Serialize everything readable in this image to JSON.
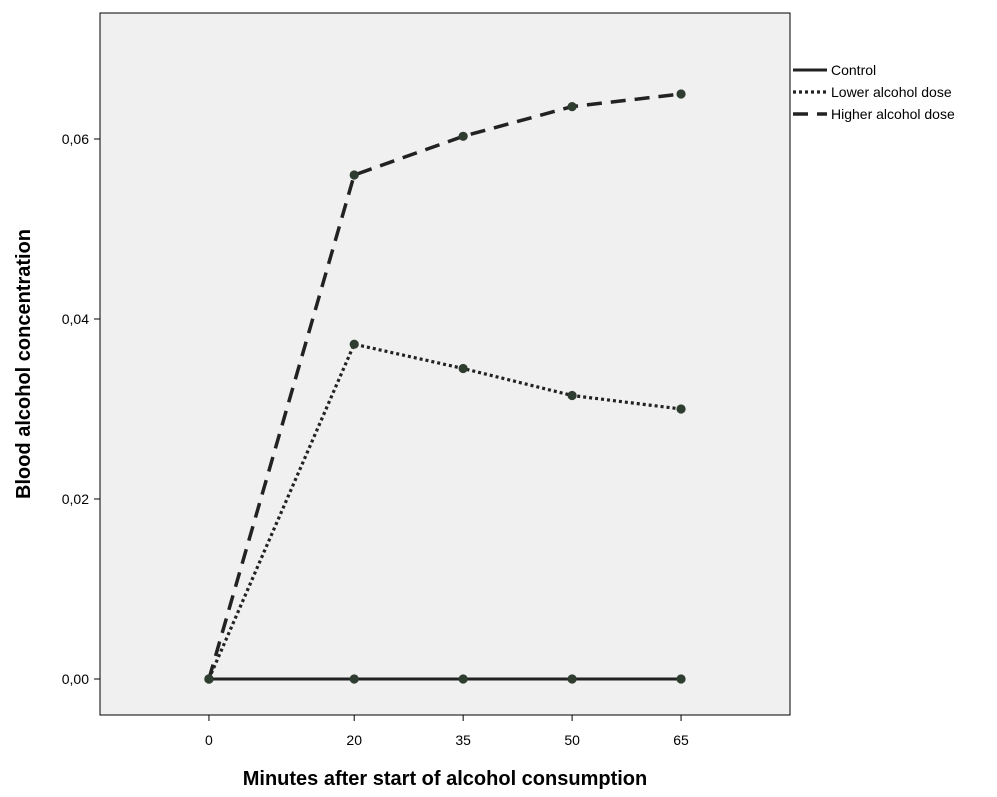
{
  "chart_data": {
    "type": "line",
    "title": "",
    "xlabel": "Minutes after start of alcohol consumption",
    "ylabel": "Blood alcohol concentration",
    "x": [
      0,
      20,
      35,
      50,
      65
    ],
    "x_tick_labels": [
      "0",
      "20",
      "35",
      "50",
      "65"
    ],
    "y_ticks": [
      0.0,
      0.02,
      0.04,
      0.06
    ],
    "y_tick_labels": [
      "0,00",
      "0,02",
      "0,04",
      "0,06"
    ],
    "xlim": [
      -15,
      80
    ],
    "ylim": [
      -0.004,
      0.074
    ],
    "grid": false,
    "legend_position": "top-right, outside plot",
    "series": [
      {
        "name": "Control",
        "style": "solid",
        "values": [
          0,
          0,
          0,
          0,
          0
        ]
      },
      {
        "name": "Lower alcohol dose",
        "style": "dotted",
        "values": [
          0,
          0.0372,
          0.0345,
          0.0315,
          0.03
        ]
      },
      {
        "name": "Higher alcohol dose",
        "style": "dashed",
        "values": [
          0,
          0.056,
          0.0603,
          0.0636,
          0.065
        ]
      }
    ]
  },
  "colors": {
    "plot_background": "#f0f0f0",
    "line": "#222222",
    "marker": "#2f3d30",
    "axis": "#000000"
  }
}
